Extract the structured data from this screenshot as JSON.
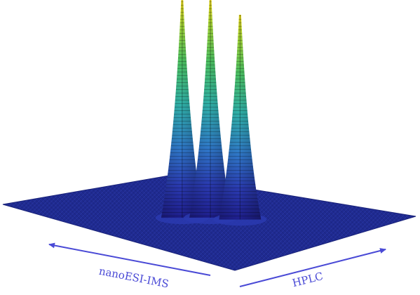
{
  "chart_data": {
    "type": "surface",
    "xlabel": "nanoESI-IMS",
    "ylabel": "HPLC",
    "colormap": [
      "#1e1e8c",
      "#2a3ab0",
      "#2f78c8",
      "#30b0a8",
      "#4cc060",
      "#9ed238",
      "#f0e020"
    ],
    "floor_color": "#1f2a90",
    "peaks": [
      {
        "height": 1.0,
        "ims": 0.42,
        "hplc": 0.46
      },
      {
        "height": 1.0,
        "ims": 0.5,
        "hplc": 0.52
      },
      {
        "height": 0.94,
        "ims": 0.56,
        "hplc": 0.6
      }
    ]
  }
}
